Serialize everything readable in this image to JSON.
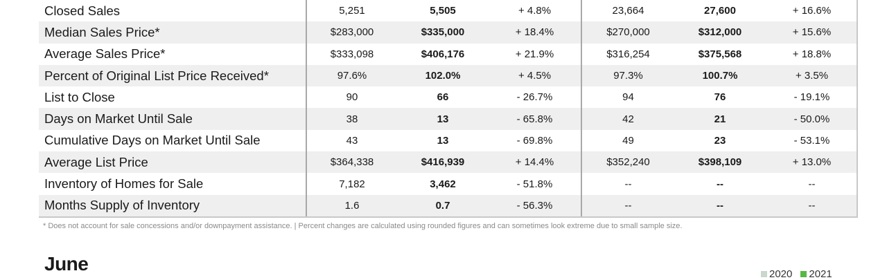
{
  "table": {
    "rows": [
      {
        "label": "Closed Sales",
        "a": "5,251",
        "b": "5,505",
        "c": "+ 4.8%",
        "d": "23,664",
        "e": "27,600",
        "f": "+ 16.6%"
      },
      {
        "label": "Median Sales Price*",
        "a": "$283,000",
        "b": "$335,000",
        "c": "+ 18.4%",
        "d": "$270,000",
        "e": "$312,000",
        "f": "+ 15.6%"
      },
      {
        "label": "Average Sales Price*",
        "a": "$333,098",
        "b": "$406,176",
        "c": "+ 21.9%",
        "d": "$316,254",
        "e": "$375,568",
        "f": "+ 18.8%"
      },
      {
        "label": "Percent of Original List Price Received*",
        "a": "97.6%",
        "b": "102.0%",
        "c": "+ 4.5%",
        "d": "97.3%",
        "e": "100.7%",
        "f": "+ 3.5%"
      },
      {
        "label": "List to Close",
        "a": "90",
        "b": "66",
        "c": "- 26.7%",
        "d": "94",
        "e": "76",
        "f": "- 19.1%"
      },
      {
        "label": "Days on Market Until Sale",
        "a": "38",
        "b": "13",
        "c": "- 65.8%",
        "d": "42",
        "e": "21",
        "f": "- 50.0%"
      },
      {
        "label": "Cumulative Days on Market Until Sale",
        "a": "43",
        "b": "13",
        "c": "- 69.8%",
        "d": "49",
        "e": "23",
        "f": "- 53.1%"
      },
      {
        "label": "Average List Price",
        "a": "$364,338",
        "b": "$416,939",
        "c": "+ 14.4%",
        "d": "$352,240",
        "e": "$398,109",
        "f": "+ 13.0%"
      },
      {
        "label": "Inventory of Homes for Sale",
        "a": "7,182",
        "b": "3,462",
        "c": "- 51.8%",
        "d": "--",
        "e": "--",
        "f": "--"
      },
      {
        "label": "Months Supply of Inventory",
        "a": "1.6",
        "b": "0.7",
        "c": "- 56.3%",
        "d": "--",
        "e": "--",
        "f": "--"
      }
    ]
  },
  "footnote": "* Does not account for sale concessions and/or downpayment assistance.  |  Percent changes are calculated using rounded figures and can sometimes look extreme due to small sample size.",
  "section": {
    "title": "June"
  },
  "legend": {
    "items": [
      {
        "label": "2020",
        "color": "#c9d7cc"
      },
      {
        "label": "2021",
        "color": "#57b846"
      }
    ]
  }
}
